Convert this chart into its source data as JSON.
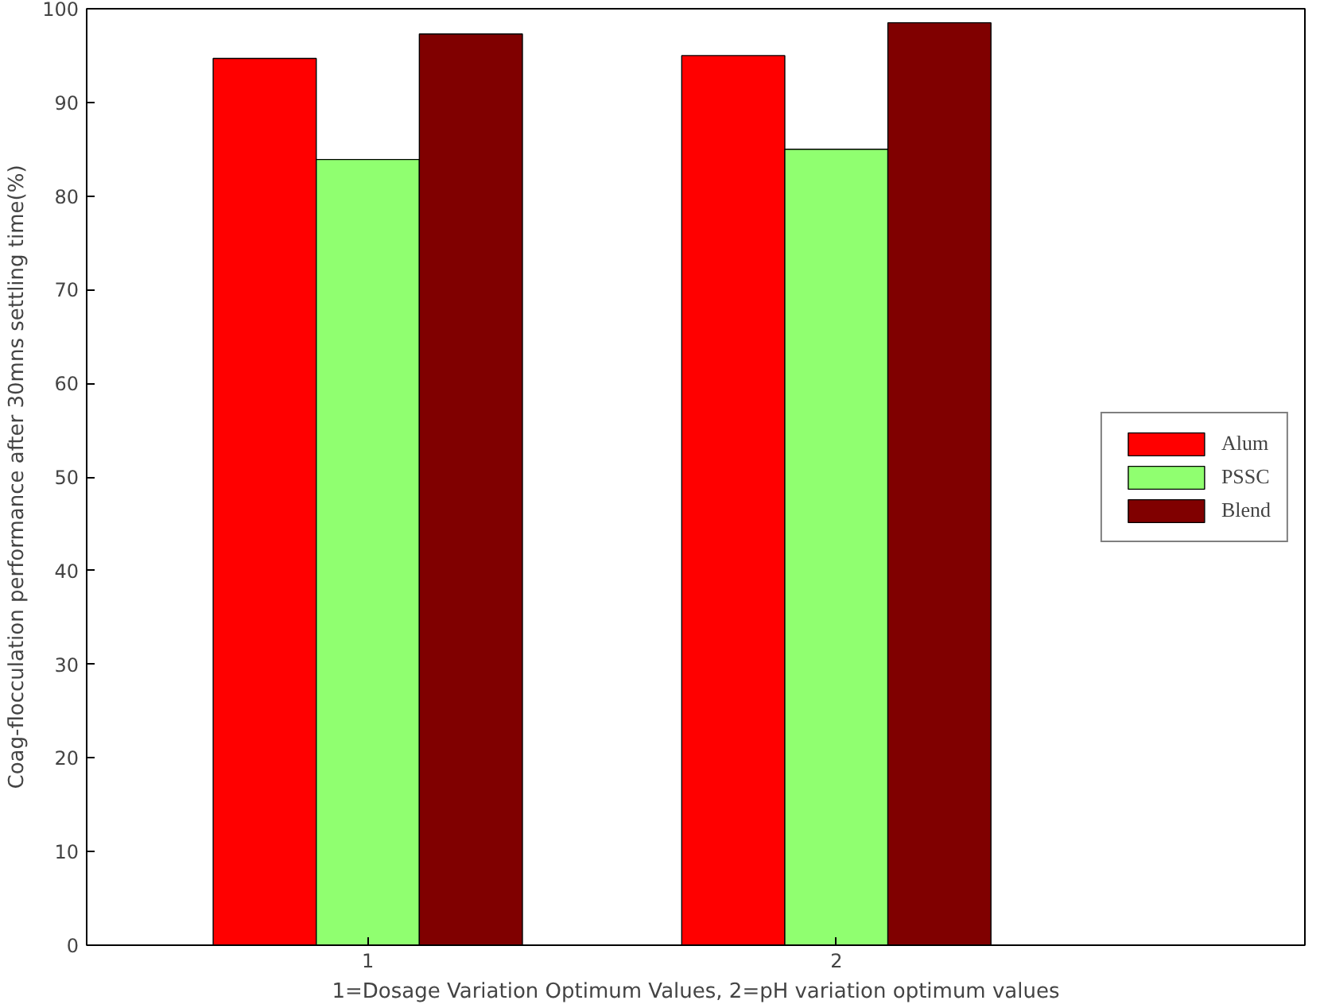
{
  "chart_data": {
    "type": "bar",
    "xlabel": "1=Dosage Variation Optimum Values, 2=pH variation optimum values",
    "ylabel": "Coag-flocculation performance after 30mns settling time(%)",
    "categories": [
      "1",
      "2"
    ],
    "series": [
      {
        "name": "Alum",
        "color": "#ff0000",
        "values": [
          94.7,
          95.0
        ]
      },
      {
        "name": "PSSC",
        "color": "#90ff70",
        "values": [
          83.9,
          85.0
        ]
      },
      {
        "name": "Blend",
        "color": "#800000",
        "values": [
          97.3,
          98.5
        ]
      }
    ],
    "ylim": [
      0,
      100
    ],
    "yticks": [
      0,
      10,
      20,
      30,
      40,
      50,
      60,
      70,
      80,
      90,
      100
    ],
    "grid": false,
    "legend": "right"
  }
}
